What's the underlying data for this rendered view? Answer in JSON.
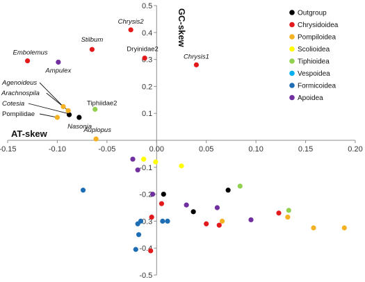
{
  "chart_data": {
    "type": "scatter",
    "xlabel": "AT-skew",
    "ylabel": "GC-skew",
    "xlim": [
      -0.15,
      0.2
    ],
    "ylim": [
      -0.5,
      0.5
    ],
    "x_ticks": [
      "-0.15",
      "-0.10",
      "-0.05",
      "0.00",
      "0.05",
      "0.10",
      "0.15",
      "0.20"
    ],
    "y_ticks": [
      "0.5",
      "0.4",
      "0.3",
      "0.2",
      "0.1",
      "-0.1",
      "-0.2",
      "-0.3",
      "-0.4",
      "-0.5"
    ],
    "legend_position": "top-right",
    "grid": false,
    "series": [
      {
        "name": "Outgroup",
        "color": "#000000",
        "points": [
          {
            "x": -0.088,
            "y": 0.095,
            "label": "Nasonia"
          },
          {
            "x": -0.078,
            "y": 0.085
          },
          {
            "x": 0.007,
            "y": -0.2
          },
          {
            "x": 0.037,
            "y": -0.265
          },
          {
            "x": 0.072,
            "y": -0.185
          }
        ]
      },
      {
        "name": "Chrysidoidea",
        "color": "#e31a1c",
        "points": [
          {
            "x": -0.13,
            "y": 0.295,
            "label": "Embolemus"
          },
          {
            "x": -0.026,
            "y": 0.41,
            "label": "Chrysis2"
          },
          {
            "x": -0.012,
            "y": 0.305,
            "label": "Dryinidae2"
          },
          {
            "x": 0.04,
            "y": 0.28,
            "label": "Chrysis1"
          },
          {
            "x": 0.005,
            "y": -0.235
          },
          {
            "x": 0.05,
            "y": -0.31
          },
          {
            "x": 0.063,
            "y": -0.315
          },
          {
            "x": 0.123,
            "y": -0.27
          },
          {
            "x": -0.005,
            "y": -0.285
          },
          {
            "x": -0.006,
            "y": -0.41
          }
        ]
      },
      {
        "name": "Pompiloidea",
        "color": "#f4b121",
        "points": [
          {
            "x": -0.094,
            "y": 0.125,
            "label": "Agenoideus"
          },
          {
            "x": -0.089,
            "y": 0.11,
            "label": "Arachnospila"
          },
          {
            "x": -0.1,
            "y": 0.085,
            "label": "Pompilidae"
          },
          {
            "x": -0.061,
            "y": 0.005,
            "label": "Auplopus"
          },
          {
            "x": 0.066,
            "y": -0.3
          },
          {
            "x": 0.132,
            "y": -0.285
          },
          {
            "x": 0.158,
            "y": -0.325
          },
          {
            "x": 0.189,
            "y": -0.325
          }
        ]
      },
      {
        "name": "Scolioidea",
        "color": "#ffff00",
        "points": [
          {
            "x": -0.013,
            "y": -0.07
          },
          {
            "x": -0.001,
            "y": -0.08
          },
          {
            "x": 0.025,
            "y": -0.095
          }
        ]
      },
      {
        "name": "Tiphioidea",
        "color": "#92d050",
        "points": [
          {
            "x": -0.062,
            "y": 0.115,
            "label": "Tiphiidae2"
          },
          {
            "x": 0.084,
            "y": -0.17
          },
          {
            "x": 0.133,
            "y": -0.26
          }
        ]
      },
      {
        "name": "Vespoidea",
        "color": "#00b0f0",
        "points": []
      },
      {
        "name": "Formicoidea",
        "color": "#1f6eb4",
        "points": [
          {
            "x": -0.074,
            "y": -0.185
          },
          {
            "x": -0.016,
            "y": -0.3
          },
          {
            "x": -0.019,
            "y": -0.31
          },
          {
            "x": -0.018,
            "y": -0.35
          },
          {
            "x": -0.021,
            "y": -0.405
          },
          {
            "x": 0.006,
            "y": -0.3
          },
          {
            "x": 0.011,
            "y": -0.3
          }
        ]
      },
      {
        "name": "Apoidea",
        "color": "#7030a0",
        "points": [
          {
            "x": -0.099,
            "y": 0.29,
            "label": "Ampulex"
          },
          {
            "x": -0.024,
            "y": -0.07
          },
          {
            "x": -0.019,
            "y": -0.11
          },
          {
            "x": -0.004,
            "y": -0.2
          },
          {
            "x": 0.03,
            "y": -0.24
          },
          {
            "x": 0.061,
            "y": -0.25
          },
          {
            "x": 0.095,
            "y": -0.295
          }
        ]
      }
    ],
    "annotations": [
      {
        "text": "Stilbum",
        "x": -0.065,
        "y": 0.35,
        "italic": true,
        "color": "#e31a1c"
      },
      {
        "text": "Cotesia",
        "x": -0.088,
        "y": 0.098,
        "italic": true,
        "color": "#000000"
      }
    ]
  }
}
